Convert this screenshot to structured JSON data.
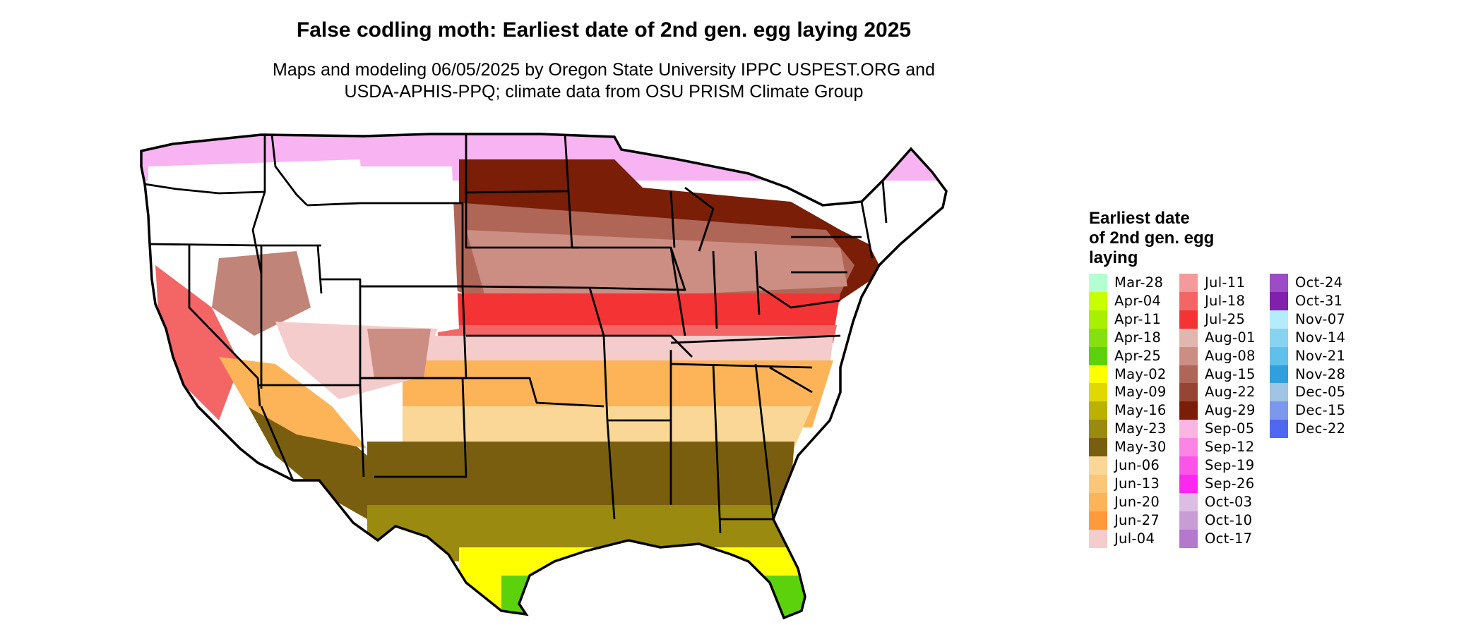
{
  "title": "False codling moth: Earliest date of 2nd gen. egg laying 2025",
  "subtitle_line1": "Maps and modeling 06/05/2025 by Oregon State University IPPC USPEST.ORG and",
  "subtitle_line2": "USDA-APHIS-PPQ; climate data from OSU PRISM Climate Group",
  "legend": {
    "title_line1": "Earliest date",
    "title_line2": "of 2nd gen. egg",
    "title_line3": "laying",
    "items": [
      {
        "label": "Mar-28",
        "color": "#b4ffd2"
      },
      {
        "label": "Apr-04",
        "color": "#c8ff00"
      },
      {
        "label": "Apr-11",
        "color": "#a6f000"
      },
      {
        "label": "Apr-18",
        "color": "#86e010"
      },
      {
        "label": "Apr-25",
        "color": "#5cd20c"
      },
      {
        "label": "May-02",
        "color": "#ffff00"
      },
      {
        "label": "May-09",
        "color": "#e0d800"
      },
      {
        "label": "May-16",
        "color": "#bcb000"
      },
      {
        "label": "May-23",
        "color": "#9a8a10"
      },
      {
        "label": "May-30",
        "color": "#7a5e10"
      },
      {
        "label": "Jun-06",
        "color": "#fad796"
      },
      {
        "label": "Jun-13",
        "color": "#fcc678"
      },
      {
        "label": "Jun-20",
        "color": "#fdb458"
      },
      {
        "label": "Jun-27",
        "color": "#ff9a3a"
      },
      {
        "label": "Jul-04",
        "color": "#f5cccc"
      },
      {
        "label": "Jul-11",
        "color": "#f49a9a"
      },
      {
        "label": "Jul-18",
        "color": "#f46666"
      },
      {
        "label": "Jul-25",
        "color": "#f43434"
      },
      {
        "label": "Aug-01",
        "color": "#e0b6ae"
      },
      {
        "label": "Aug-08",
        "color": "#cc8e82"
      },
      {
        "label": "Aug-15",
        "color": "#b06656"
      },
      {
        "label": "Aug-22",
        "color": "#964434"
      },
      {
        "label": "Aug-29",
        "color": "#7a1e08"
      },
      {
        "label": "Sep-05",
        "color": "#fcb4e2"
      },
      {
        "label": "Sep-12",
        "color": "#fc84e6"
      },
      {
        "label": "Sep-19",
        "color": "#fc54e8"
      },
      {
        "label": "Sep-26",
        "color": "#fc28f0"
      },
      {
        "label": "Oct-03",
        "color": "#dcbee4"
      },
      {
        "label": "Oct-10",
        "color": "#c89cd4"
      },
      {
        "label": "Oct-17",
        "color": "#b478cc"
      },
      {
        "label": "Oct-24",
        "color": "#9c4cc4"
      },
      {
        "label": "Oct-31",
        "color": "#8020ac"
      },
      {
        "label": "Nov-07",
        "color": "#b4ecfc"
      },
      {
        "label": "Nov-14",
        "color": "#88d4f0"
      },
      {
        "label": "Nov-21",
        "color": "#60c0ec"
      },
      {
        "label": "Nov-28",
        "color": "#30a0dc"
      },
      {
        "label": "Dec-05",
        "color": "#a0c4e4"
      },
      {
        "label": "Dec-15",
        "color": "#7c98ec"
      },
      {
        "label": "Dec-22",
        "color": "#5068f0"
      }
    ]
  },
  "map_colors": {
    "border": "#000000",
    "unreached": "#ffffff",
    "north_pink": "#f075e8",
    "north_brown": "#7a1e08",
    "mid_brown": "#b06656",
    "light_brown": "#cc8e82",
    "red_belt": "#f43434",
    "red_light": "#f46666",
    "pink_belt": "#f5cccc",
    "orange_belt": "#fdb458",
    "orange_light": "#fad796",
    "olive_belt": "#7a5e10",
    "olive_light": "#9a8a10",
    "yellow_tip": "#ffff00",
    "green_tip": "#5cd20c"
  }
}
